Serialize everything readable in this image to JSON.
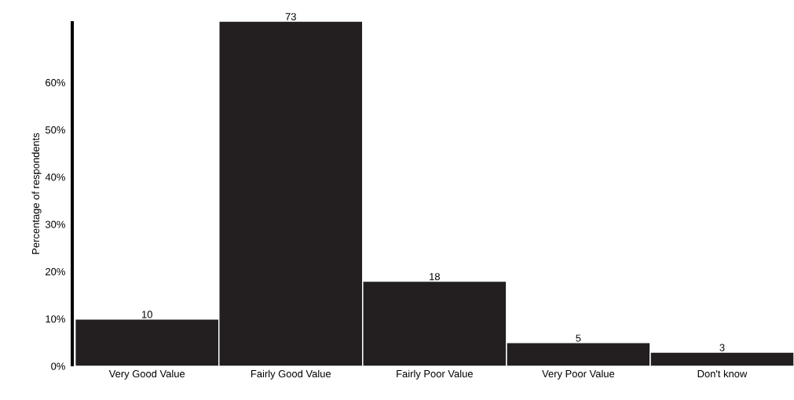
{
  "chart_data": {
    "type": "bar",
    "ylabel": "Percentage of respondents",
    "categories": [
      "Very Good Value",
      "Fairly Good Value",
      "Fairly Poor Value",
      "Very Poor Value",
      "Don't know"
    ],
    "values": [
      10,
      73,
      18,
      5,
      3
    ],
    "color": "#231f20",
    "data_labels": true,
    "ylim": [
      0,
      73
    ],
    "yticks": [
      {
        "value": 0,
        "label": "0%"
      },
      {
        "value": 10,
        "label": "10%"
      },
      {
        "value": 20,
        "label": "20%"
      },
      {
        "value": 30,
        "label": "30%"
      },
      {
        "value": 40,
        "label": "40%"
      },
      {
        "value": 50,
        "label": "50%"
      },
      {
        "value": 60,
        "label": "60%"
      }
    ],
    "tick_labels": "xy"
  }
}
